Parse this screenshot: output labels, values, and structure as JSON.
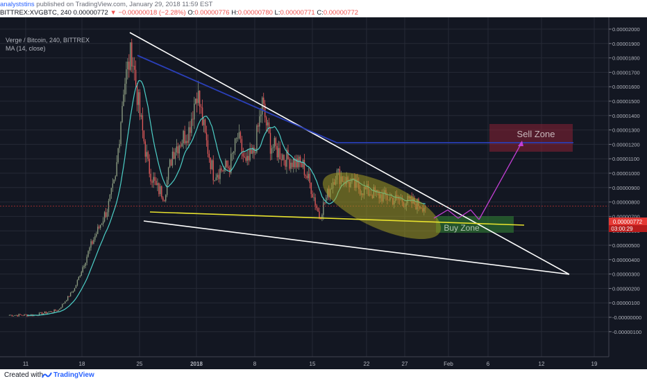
{
  "header": {
    "author": "analyststins",
    "published_text": "published on TradingView.com, January 29, 2018 11:59 EST"
  },
  "ohlc": {
    "symbol": "BITTREX:XVGBTC, 240",
    "last": "0.00000772",
    "change": "−0.00000018 (−2.28%)",
    "o_label": "O:",
    "o_value": "0.00000776",
    "h_label": "H:",
    "h_value": "0.00000780",
    "l_label": "L:",
    "l_value": "0.00000771",
    "c_label": "C:",
    "c_value": "0.00000772"
  },
  "legend": {
    "pair": "Verge / Bitcoin, 240, BITTREX",
    "indicator": "MA (14, close)"
  },
  "footer": {
    "created_with": "Created with",
    "brand": "TradingView"
  },
  "colors": {
    "background": "#131722",
    "grid": "#262a36",
    "up_candle": "#8a9a7f",
    "down_candle": "#e05a5a",
    "ma_line": "#4dd0c8",
    "triangle": "#ffffff",
    "resistance": "#2a3fb8",
    "support": "#e8e22e",
    "sell_zone": "#8b2035",
    "buy_zone": "#2e7d32",
    "ellipse": "#8c8520",
    "arrows": "#c23fd4",
    "price_tag": "#e53935"
  },
  "chart_data": {
    "type": "candlestick",
    "title": "Verge / Bitcoin, 240, BITTREX",
    "indicator": "MA (14, close)",
    "y_ticks": [
      "0.00002000",
      "0.00001900",
      "0.00001800",
      "0.00001700",
      "0.00001600",
      "0.00001500",
      "0.00001400",
      "0.00001300",
      "0.00001200",
      "0.00001100",
      "0.00001000",
      "0.00000900",
      "0.00000800",
      "0.00000700",
      "0.00000600",
      "0.00000500",
      "0.00000400",
      "0.00000300",
      "0.00000200",
      "0.00000100",
      "-0.00000000",
      "-0.00000100"
    ],
    "x_ticks": [
      "11",
      "18",
      "25",
      "2018",
      "8",
      "15",
      "22",
      "27",
      "Feb",
      "6",
      "12",
      "19"
    ],
    "ylim": [
      -1e-06,
      2e-05
    ],
    "last_price_label": "0.00000772",
    "countdown_label": "03:00:29",
    "close_path": [
      [
        "Dec 9",
        1.5e-07
      ],
      [
        "Dec 12",
        1.5e-07
      ],
      [
        "Dec 15",
        5e-07
      ],
      [
        "Dec 17",
        2e-06
      ],
      [
        "Dec 19",
        5e-06
      ],
      [
        "Dec 21",
        7.5e-06
      ],
      [
        "Dec 22",
        9.5e-06
      ],
      [
        "Dec 23",
        1.6e-05
      ],
      [
        "Dec 24",
        1.85e-05
      ],
      [
        "Dec 25",
        1.4e-05
      ],
      [
        "Dec 26",
        1.05e-05
      ],
      [
        "Dec 27",
        9e-06
      ],
      [
        "Dec 28",
        8.5e-06
      ],
      [
        "Dec 29",
        1.15e-05
      ],
      [
        "Dec 31",
        1.3e-05
      ],
      [
        "Jan 1",
        1.58e-05
      ],
      [
        "Jan 2",
        1.25e-05
      ],
      [
        "Jan 3",
        1e-05
      ],
      [
        "Jan 5",
        1.05e-05
      ],
      [
        "Jan 6",
        1.25e-05
      ],
      [
        "Jan 7",
        1.05e-05
      ],
      [
        "Jan 8",
        1.15e-05
      ],
      [
        "Jan 9",
        1.48e-05
      ],
      [
        "Jan 10",
        1.2e-05
      ],
      [
        "Jan 12",
        1.1e-05
      ],
      [
        "Jan 14",
        1.05e-05
      ],
      [
        "Jan 15",
        9e-06
      ],
      [
        "Jan 16",
        7e-06
      ],
      [
        "Jan 17",
        8.5e-06
      ],
      [
        "Jan 18",
        1e-05
      ],
      [
        "Jan 20",
        9.2e-06
      ],
      [
        "Jan 22",
        8.7e-06
      ],
      [
        "Jan 25",
        8.2e-06
      ],
      [
        "Jan 27",
        8e-06
      ],
      [
        "Jan 29",
        7.72e-06
      ]
    ],
    "drawings": {
      "sell_zone_label": "Sell Zone",
      "buy_zone_label": "Buy Zone"
    }
  }
}
